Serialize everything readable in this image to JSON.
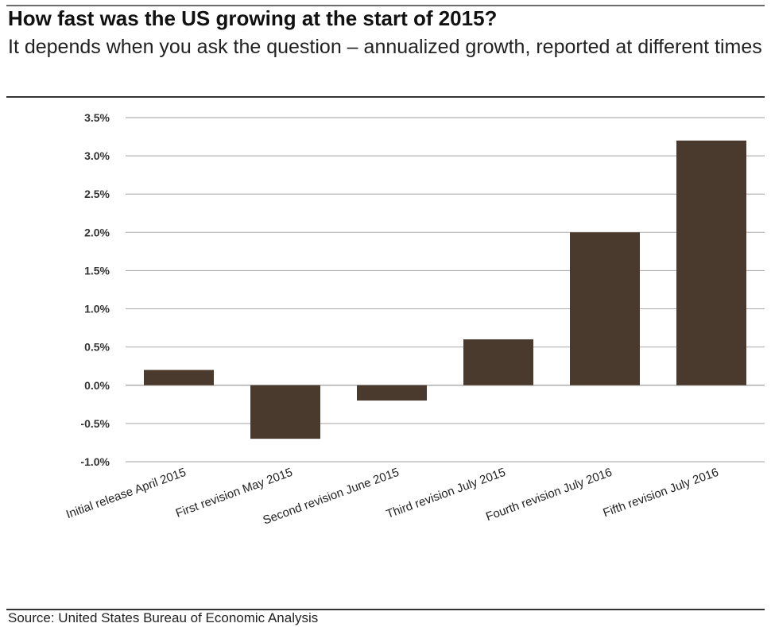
{
  "chart_data": {
    "type": "bar",
    "title": "How fast was the US growing at the start of 2015?",
    "subtitle": "It depends when you ask the question – annualized growth, reported at different times",
    "categories": [
      "Initial release April 2015",
      "First revision May 2015",
      "Second revision June 2015",
      "Third revision July 2015",
      "Fourth revision July 2016",
      "Fifth revision July 2016"
    ],
    "values": [
      0.2,
      -0.7,
      -0.2,
      0.6,
      2.0,
      3.2
    ],
    "y_ticks": [
      "3.5%",
      "3.0%",
      "2.5%",
      "2.0%",
      "1.5%",
      "1.0%",
      "0.5%",
      "0.0%",
      "-0.5%",
      "-1.0%"
    ],
    "ylim": [
      -1.0,
      3.5
    ],
    "y_unit": "%",
    "grid": true,
    "legend": "none",
    "bar_color": "#4a3a2d",
    "grid_color": "#b5b5b5",
    "source": "Source: United States Bureau of Economic Analysis"
  }
}
